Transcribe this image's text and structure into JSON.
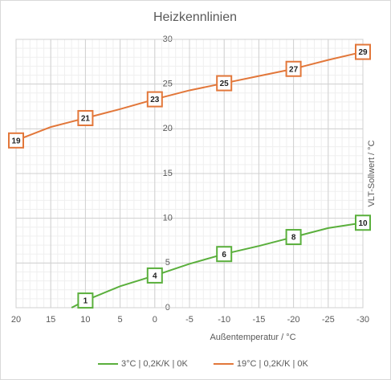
{
  "chart_data": {
    "type": "line",
    "title": "Heizkennlinien",
    "x_label": "Außentemperatur  / °C",
    "y_label": "VLT-Sollwert / °C",
    "x": [
      20,
      15,
      12,
      10,
      5,
      0,
      -5,
      -10,
      -15,
      -20,
      -25,
      -30
    ],
    "series": [
      {
        "name": "3°C | 0,2K/K | 0K",
        "color": "#5aaf3c",
        "values": [
          null,
          null,
          0,
          0.8,
          2.4,
          3.6,
          4.9,
          6.0,
          6.9,
          7.9,
          8.9,
          9.5
        ],
        "value_labels": [
          null,
          null,
          null,
          "1",
          null,
          "4",
          null,
          "6",
          null,
          "8",
          null,
          "10"
        ]
      },
      {
        "name": "19°C | 0,2K/K | 0K",
        "color": "#e2773a",
        "values": [
          18.7,
          20.2,
          20.8,
          21.2,
          22.2,
          23.3,
          24.3,
          25.1,
          25.9,
          26.7,
          27.7,
          28.6
        ],
        "value_labels": [
          "19",
          null,
          null,
          "21",
          null,
          "23",
          null,
          "25",
          null,
          "27",
          null,
          "29"
        ]
      }
    ],
    "xlim": [
      20,
      -30
    ],
    "xticks": [
      20,
      15,
      10,
      5,
      0,
      -5,
      -10,
      -15,
      -20,
      -25,
      -30
    ],
    "ylim": [
      0,
      30
    ],
    "yticks": [
      0,
      5,
      10,
      15,
      20,
      25,
      30
    ],
    "grid": true,
    "minor_grid": true,
    "legend": "bottom"
  }
}
